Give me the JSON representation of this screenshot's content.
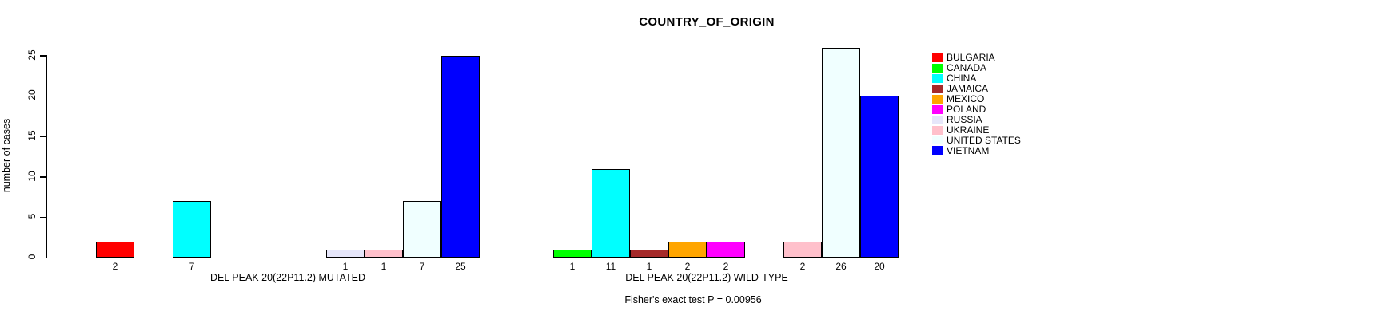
{
  "title": "COUNTRY_OF_ORIGIN",
  "footer": "Fisher's exact test P = 0.00956",
  "y_axis": {
    "label": "number of cases",
    "ticks": [
      0,
      5,
      10,
      15,
      20,
      25
    ]
  },
  "legend": {
    "position": "right",
    "items": [
      {
        "label": "BULGARIA",
        "color": "#FF0000"
      },
      {
        "label": "CANADA",
        "color": "#00FF00"
      },
      {
        "label": "CHINA",
        "color": "#00FFFF"
      },
      {
        "label": "JAMAICA",
        "color": "#A52A2A"
      },
      {
        "label": "MEXICO",
        "color": "#FFA500"
      },
      {
        "label": "POLAND",
        "color": "#FF00FF"
      },
      {
        "label": "RUSSIA",
        "color": "#E6E6FA"
      },
      {
        "label": "UKRAINE",
        "color": "#FFC0CB"
      },
      {
        "label": "UNITED STATES",
        "color": "#F0FFFF"
      },
      {
        "label": "VIETNAM",
        "color": "#0000FF"
      }
    ]
  },
  "chart_data": [
    {
      "type": "bar",
      "title": "COUNTRY_OF_ORIGIN",
      "xlabel": "DEL PEAK 20(22P11.2) MUTATED",
      "ylabel": "number of cases",
      "ylim": [
        0,
        26
      ],
      "grid": false,
      "categories": [
        "BULGARIA",
        "CANADA",
        "CHINA",
        "JAMAICA",
        "MEXICO",
        "POLAND",
        "RUSSIA",
        "UKRAINE",
        "UNITED STATES",
        "VIETNAM"
      ],
      "values": [
        2,
        0,
        7,
        0,
        0,
        0,
        1,
        1,
        7,
        25
      ],
      "bar_number_labels": [
        "2",
        "",
        "7",
        "",
        "",
        "",
        "1",
        "1",
        "7",
        "25"
      ],
      "colors": [
        "#FF0000",
        "#00FF00",
        "#00FFFF",
        "#A52A2A",
        "#FFA500",
        "#FF00FF",
        "#E6E6FA",
        "#FFC0CB",
        "#F0FFFF",
        "#0000FF"
      ]
    },
    {
      "type": "bar",
      "title": "COUNTRY_OF_ORIGIN",
      "xlabel": "DEL PEAK 20(22P11.2) WILD-TYPE",
      "ylabel": "number of cases",
      "ylim": [
        0,
        26
      ],
      "grid": false,
      "categories": [
        "BULGARIA",
        "CANADA",
        "CHINA",
        "JAMAICA",
        "MEXICO",
        "POLAND",
        "RUSSIA",
        "UKRAINE",
        "UNITED STATES",
        "VIETNAM"
      ],
      "values": [
        0,
        1,
        11,
        1,
        2,
        2,
        0,
        2,
        26,
        20
      ],
      "bar_number_labels": [
        "",
        "1",
        "11",
        "1",
        "2",
        "2",
        "",
        "2",
        "26",
        "20"
      ],
      "colors": [
        "#FF0000",
        "#00FF00",
        "#00FFFF",
        "#A52A2A",
        "#FFA500",
        "#FF00FF",
        "#E6E6FA",
        "#FFC0CB",
        "#F0FFFF",
        "#0000FF"
      ]
    }
  ]
}
